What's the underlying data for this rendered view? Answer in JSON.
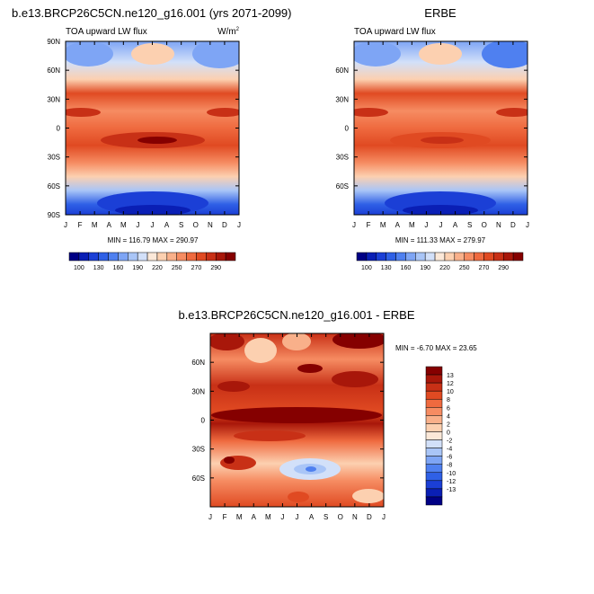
{
  "chart_data": [
    {
      "type": "heatmap",
      "title": "b.e13.BRCP26C5CN.ne120_g16.001 (yrs 2071-2099)",
      "subtitle_left": "TOA upward LW flux",
      "units_base": "W/m",
      "units_exp": "2",
      "x_tick_labels": [
        "J",
        "F",
        "M",
        "A",
        "M",
        "J",
        "J",
        "A",
        "S",
        "O",
        "N",
        "D",
        "J"
      ],
      "y_tick_labels": [
        "90N",
        "60N",
        "30N",
        "0",
        "30S",
        "60S",
        "90S"
      ],
      "y_tick_values": [
        90,
        60,
        30,
        0,
        -30,
        -60,
        -90
      ],
      "stats": "MIN = 116.79 MAX = 290.97",
      "data_range": [
        116.79,
        290.97
      ],
      "ylim": [
        -90,
        90
      ]
    },
    {
      "type": "heatmap",
      "title": "ERBE",
      "subtitle_left": "TOA upward LW flux",
      "x_tick_labels": [
        "J",
        "F",
        "M",
        "A",
        "M",
        "J",
        "J",
        "A",
        "S",
        "O",
        "N",
        "D",
        "J"
      ],
      "y_tick_labels": [
        "60N",
        "30N",
        "0",
        "30S",
        "60S"
      ],
      "y_tick_values": [
        60,
        30,
        0,
        -30,
        -60
      ],
      "stats": "MIN = 111.33 MAX = 279.97",
      "data_range": [
        111.33,
        279.97
      ],
      "ylim": [
        -90,
        90
      ]
    },
    {
      "type": "heatmap",
      "title": "b.e13.BRCP26C5CN.ne120_g16.001 - ERBE",
      "x_tick_labels": [
        "J",
        "F",
        "M",
        "A",
        "M",
        "J",
        "J",
        "A",
        "S",
        "O",
        "N",
        "D",
        "J"
      ],
      "y_tick_labels": [
        "60N",
        "30N",
        "0",
        "30S",
        "60S"
      ],
      "y_tick_values": [
        60,
        30,
        0,
        -30,
        -60
      ],
      "stats": "MIN =  -6.70 MAX =  23.65",
      "data_range": [
        -6.7,
        23.65
      ],
      "ylim": [
        -90,
        90
      ]
    }
  ],
  "flux_colorbar": {
    "labels": [
      "100",
      "130",
      "160",
      "190",
      "220",
      "250",
      "270",
      "290"
    ],
    "colors": [
      "#000085",
      "#0a1fb5",
      "#1b3fd6",
      "#2f60e6",
      "#4f80f0",
      "#7ea5f5",
      "#a9c5f7",
      "#d2e0f9",
      "#fbe8d8",
      "#fcd0b0",
      "#f9b08a",
      "#f68c62",
      "#ef6a3f",
      "#e04a22",
      "#c83016",
      "#a8170a",
      "#850000"
    ]
  },
  "diff_colorbar": {
    "labels": [
      "13",
      "12",
      "10",
      "8",
      "6",
      "4",
      "2",
      "0",
      "-2",
      "-4",
      "-6",
      "-8",
      "-10",
      "-12",
      "-13"
    ],
    "colors": [
      "#850000",
      "#a8170a",
      "#c83016",
      "#e04a22",
      "#ef6a3f",
      "#f68c62",
      "#f9b08a",
      "#fcd0b0",
      "#fbe8d8",
      "#d2e0f9",
      "#a9c5f7",
      "#7ea5f5",
      "#4f80f0",
      "#2f60e6",
      "#1b3fd6",
      "#0a1fb5",
      "#000085"
    ]
  }
}
